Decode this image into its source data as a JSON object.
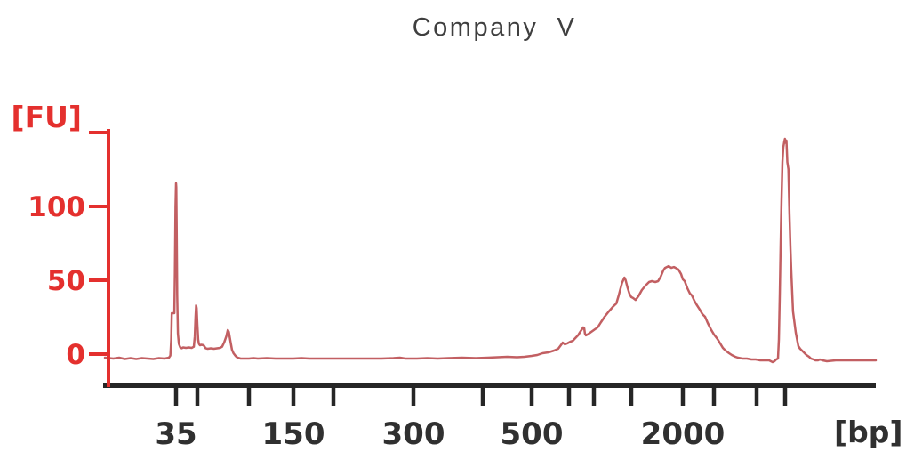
{
  "title": "Company  V",
  "chart_data": {
    "type": "line",
    "chart_kind": "electropherogram",
    "title": "Company  V",
    "xlabel": "[bp]",
    "ylabel": "[FU]",
    "grid": false,
    "legend": "none",
    "x_scale": "nonlinear-migration",
    "ylim": [
      -10,
      160
    ],
    "colors": {
      "trace": "#c25f62",
      "axis_red": "#e4302e",
      "axis_black": "#262626",
      "tick_label": "#303030",
      "title": "#3f3f3f",
      "background": "#ffffff"
    },
    "y_ticks": [
      {
        "fu": 150,
        "label": ""
      },
      {
        "fu": 100,
        "label": "100"
      },
      {
        "fu": 50,
        "label": "50"
      },
      {
        "fu": 0,
        "label": "0"
      }
    ],
    "x_ticks": [
      {
        "bp": 35,
        "label": "35"
      },
      {
        "bp": 50,
        "label": ""
      },
      {
        "bp": 100,
        "label": ""
      },
      {
        "bp": 150,
        "label": "150"
      },
      {
        "bp": 200,
        "label": ""
      },
      {
        "bp": 300,
        "label": "300"
      },
      {
        "bp": 400,
        "label": ""
      },
      {
        "bp": 500,
        "label": "500"
      },
      {
        "bp": 600,
        "label": ""
      },
      {
        "bp": 700,
        "label": ""
      },
      {
        "bp": 1000,
        "label": ""
      },
      {
        "bp": 2000,
        "label": "2000"
      },
      {
        "bp": 3000,
        "label": ""
      },
      {
        "bp": 7000,
        "label": ""
      },
      {
        "bp": 10380,
        "label": ""
      }
    ],
    "x_scale_anchors": [
      [
        10,
        118
      ],
      [
        35,
        198
      ],
      [
        50,
        222
      ],
      [
        100,
        280
      ],
      [
        150,
        330
      ],
      [
        200,
        375
      ],
      [
        300,
        465
      ],
      [
        400,
        543
      ],
      [
        500,
        598
      ],
      [
        600,
        640
      ],
      [
        700,
        668
      ],
      [
        1000,
        710
      ],
      [
        2000,
        768
      ],
      [
        3000,
        803
      ],
      [
        7000,
        851
      ],
      [
        10380,
        883
      ],
      [
        17000,
        985
      ]
    ],
    "peaks": [
      {
        "bp": 35,
        "fu": 116,
        "name": "lower marker"
      },
      {
        "bp": 49,
        "fu": 33,
        "name": "small peak ~50 bp"
      },
      {
        "bp": 80,
        "fu": 16,
        "name": "small peak ~80 bp"
      },
      {
        "bp": 950,
        "fu": 52,
        "name": "sharp spike on hump"
      },
      {
        "bp": 1725,
        "fu": 60,
        "name": "broad sample peak ~700-3000 bp"
      },
      {
        "bp": 10380,
        "fu": 146,
        "name": "upper marker"
      }
    ],
    "trace": [
      [
        10,
        -2.4
      ],
      [
        13,
        -3
      ],
      [
        15,
        -2.4
      ],
      [
        17,
        -3.3
      ],
      [
        19,
        -2.7
      ],
      [
        21,
        -3.3
      ],
      [
        23,
        -2.7
      ],
      [
        25,
        -3
      ],
      [
        27,
        -3.3
      ],
      [
        29,
        -2.7
      ],
      [
        31,
        -3
      ],
      [
        32.5,
        -2.4
      ],
      [
        33,
        -1
      ],
      [
        33.3,
        10
      ],
      [
        33.5,
        27.7
      ],
      [
        34.4,
        27.7
      ],
      [
        34.6,
        55
      ],
      [
        34.8,
        100
      ],
      [
        35,
        115.7
      ],
      [
        35.2,
        113
      ],
      [
        35.5,
        80
      ],
      [
        35.8,
        40
      ],
      [
        36.3,
        14
      ],
      [
        37,
        7
      ],
      [
        38,
        4.5
      ],
      [
        39,
        4
      ],
      [
        40,
        4.5
      ],
      [
        42,
        4.2
      ],
      [
        44,
        4.5
      ],
      [
        46,
        4.2
      ],
      [
        47.5,
        5
      ],
      [
        48.2,
        12
      ],
      [
        48.7,
        25
      ],
      [
        49.1,
        33
      ],
      [
        49.5,
        31
      ],
      [
        50,
        20
      ],
      [
        50.8,
        10
      ],
      [
        51.5,
        7
      ],
      [
        52.5,
        6
      ],
      [
        54,
        6.3
      ],
      [
        56,
        6
      ],
      [
        58,
        4
      ],
      [
        60,
        3.6
      ],
      [
        63,
        3.9
      ],
      [
        66,
        3.6
      ],
      [
        69,
        3.9
      ],
      [
        72,
        4.2
      ],
      [
        74,
        5
      ],
      [
        76,
        8
      ],
      [
        78,
        12
      ],
      [
        79.5,
        16.3
      ],
      [
        80.5,
        15
      ],
      [
        82,
        9
      ],
      [
        83.5,
        3
      ],
      [
        85,
        0.6
      ],
      [
        87,
        -1.2
      ],
      [
        89,
        -2.4
      ],
      [
        92,
        -3
      ],
      [
        96,
        -3
      ],
      [
        100,
        -3
      ],
      [
        105,
        -2.7
      ],
      [
        110,
        -3
      ],
      [
        120,
        -2.7
      ],
      [
        130,
        -3
      ],
      [
        140,
        -3
      ],
      [
        150,
        -3
      ],
      [
        160,
        -2.7
      ],
      [
        170,
        -3
      ],
      [
        180,
        -3
      ],
      [
        190,
        -3
      ],
      [
        200,
        -3
      ],
      [
        215,
        -3
      ],
      [
        230,
        -3
      ],
      [
        245,
        -3
      ],
      [
        260,
        -3
      ],
      [
        275,
        -2.7
      ],
      [
        283,
        -2.4
      ],
      [
        290,
        -3
      ],
      [
        305,
        -3
      ],
      [
        320,
        -2.7
      ],
      [
        335,
        -3
      ],
      [
        350,
        -2.7
      ],
      [
        370,
        -2.4
      ],
      [
        390,
        -2.7
      ],
      [
        410,
        -2.4
      ],
      [
        430,
        -2.1
      ],
      [
        450,
        -1.8
      ],
      [
        470,
        -2.1
      ],
      [
        485,
        -1.8
      ],
      [
        500,
        -1.2
      ],
      [
        515,
        -0.6
      ],
      [
        529,
        0.6
      ],
      [
        545,
        1.2
      ],
      [
        560,
        2.4
      ],
      [
        571,
        3.6
      ],
      [
        578,
        6
      ],
      [
        583,
        7.8
      ],
      [
        589,
        6.6
      ],
      [
        595,
        7.2
      ],
      [
        605,
        8.4
      ],
      [
        615,
        9
      ],
      [
        625,
        10.8
      ],
      [
        636,
        12.7
      ],
      [
        645,
        15.1
      ],
      [
        652,
        16.9
      ],
      [
        657,
        18.1
      ],
      [
        661,
        17.5
      ],
      [
        664,
        13.9
      ],
      [
        668,
        12.7
      ],
      [
        675,
        13.3
      ],
      [
        685,
        14.5
      ],
      [
        695,
        15.7
      ],
      [
        710,
        16.9
      ],
      [
        730,
        18.1
      ],
      [
        757,
        21.7
      ],
      [
        786,
        25.3
      ],
      [
        820,
        28.9
      ],
      [
        857,
        32.5
      ],
      [
        880,
        34.3
      ],
      [
        900,
        40
      ],
      [
        925,
        48
      ],
      [
        945,
        51.8
      ],
      [
        955,
        50
      ],
      [
        970,
        45
      ],
      [
        985,
        41
      ],
      [
        1000,
        38.6
      ],
      [
        1035,
        38
      ],
      [
        1085,
        36.7
      ],
      [
        1140,
        39.2
      ],
      [
        1205,
        43.4
      ],
      [
        1275,
        46.4
      ],
      [
        1345,
        48.8
      ],
      [
        1400,
        49.4
      ],
      [
        1465,
        48.8
      ],
      [
        1520,
        49.4
      ],
      [
        1570,
        52.4
      ],
      [
        1620,
        56.6
      ],
      [
        1655,
        58.4
      ],
      [
        1690,
        59
      ],
      [
        1725,
        59.6
      ],
      [
        1775,
        58.4
      ],
      [
        1830,
        59
      ],
      [
        1860,
        58.4
      ],
      [
        1915,
        57.2
      ],
      [
        1965,
        54.2
      ],
      [
        2000,
        50.6
      ],
      [
        2060,
        49.4
      ],
      [
        2145,
        44.6
      ],
      [
        2230,
        41
      ],
      [
        2290,
        39.8
      ],
      [
        2370,
        36.1
      ],
      [
        2455,
        33.1
      ],
      [
        2545,
        30.1
      ],
      [
        2630,
        27.1
      ],
      [
        2715,
        25.3
      ],
      [
        2800,
        21.1
      ],
      [
        2915,
        16.3
      ],
      [
        3000,
        13.3
      ],
      [
        3330,
        10.2
      ],
      [
        3580,
        7.2
      ],
      [
        3830,
        4.2
      ],
      [
        4080,
        2.4
      ],
      [
        4420,
        0.6
      ],
      [
        4670,
        -0.6
      ],
      [
        5000,
        -1.8
      ],
      [
        5250,
        -2.4
      ],
      [
        5670,
        -3
      ],
      [
        6080,
        -3
      ],
      [
        6500,
        -3.6
      ],
      [
        6920,
        -3.6
      ],
      [
        7420,
        -4.2
      ],
      [
        7950,
        -4.2
      ],
      [
        8480,
        -4.2
      ],
      [
        8690,
        -4.8
      ],
      [
        8900,
        -5.4
      ],
      [
        9110,
        -4.8
      ],
      [
        9320,
        -3.6
      ],
      [
        9530,
        -3
      ],
      [
        9640,
        10
      ],
      [
        9750,
        40
      ],
      [
        9850,
        75
      ],
      [
        9960,
        105
      ],
      [
        10060,
        130
      ],
      [
        10170,
        140
      ],
      [
        10280,
        144
      ],
      [
        10360,
        145.8
      ],
      [
        10430,
        143
      ],
      [
        10480,
        144.6
      ],
      [
        10540,
        130
      ],
      [
        10620,
        125.3
      ],
      [
        10700,
        95
      ],
      [
        10770,
        72
      ],
      [
        10830,
        57
      ],
      [
        10960,
        28.9
      ],
      [
        11160,
        14.5
      ],
      [
        11350,
        5.4
      ],
      [
        11480,
        3.6
      ],
      [
        11610,
        2.4
      ],
      [
        11810,
        0.6
      ],
      [
        11940,
        -0.6
      ],
      [
        12130,
        -1.8
      ],
      [
        12260,
        -3
      ],
      [
        12460,
        -3.6
      ],
      [
        12590,
        -4.2
      ],
      [
        12780,
        -4.2
      ],
      [
        12920,
        -3.6
      ],
      [
        13110,
        -4.2
      ],
      [
        13430,
        -4.8
      ],
      [
        14080,
        -4.2
      ],
      [
        14730,
        -4.2
      ],
      [
        15380,
        -4.2
      ],
      [
        16030,
        -4.2
      ],
      [
        17000,
        -4.2
      ]
    ]
  }
}
